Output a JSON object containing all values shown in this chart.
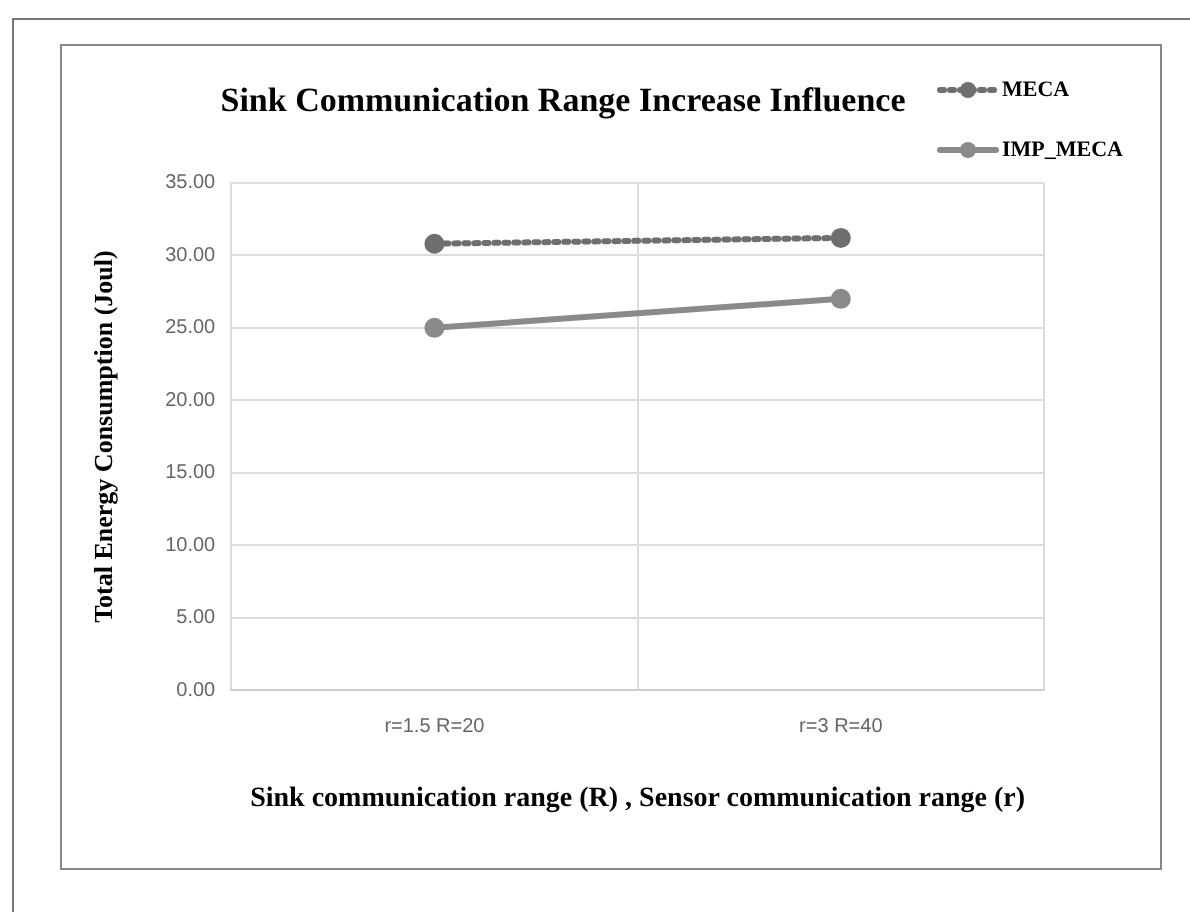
{
  "chart_data": {
    "type": "line",
    "title": "Sink Communication Range Increase Influence",
    "xlabel": "Sink communication range (R) , Sensor communication range (r)",
    "ylabel": "Total Energy Consumption (Joul)",
    "categories": [
      "r=1.5 R=20",
      "r=3 R=40"
    ],
    "series": [
      {
        "name": "MECA",
        "color": "#6f6f6f",
        "values": [
          30.8,
          31.2
        ],
        "line_style": "dotted"
      },
      {
        "name": "IMP_MECA",
        "color": "#8a8a8a",
        "values": [
          25.0,
          27.0
        ],
        "line_style": "solid"
      }
    ],
    "ylim": [
      0,
      35
    ],
    "yticks": [
      {
        "value": 0,
        "label": "0.00"
      },
      {
        "value": 5,
        "label": "5.00"
      },
      {
        "value": 10,
        "label": "10.00"
      },
      {
        "value": 15,
        "label": "15.00"
      },
      {
        "value": 20,
        "label": "20.00"
      },
      {
        "value": 25,
        "label": "25.00"
      },
      {
        "value": 30,
        "label": "30.00"
      },
      {
        "value": 35,
        "label": "35.00"
      }
    ],
    "grid": true,
    "legend": "top right",
    "marker": "circle"
  }
}
